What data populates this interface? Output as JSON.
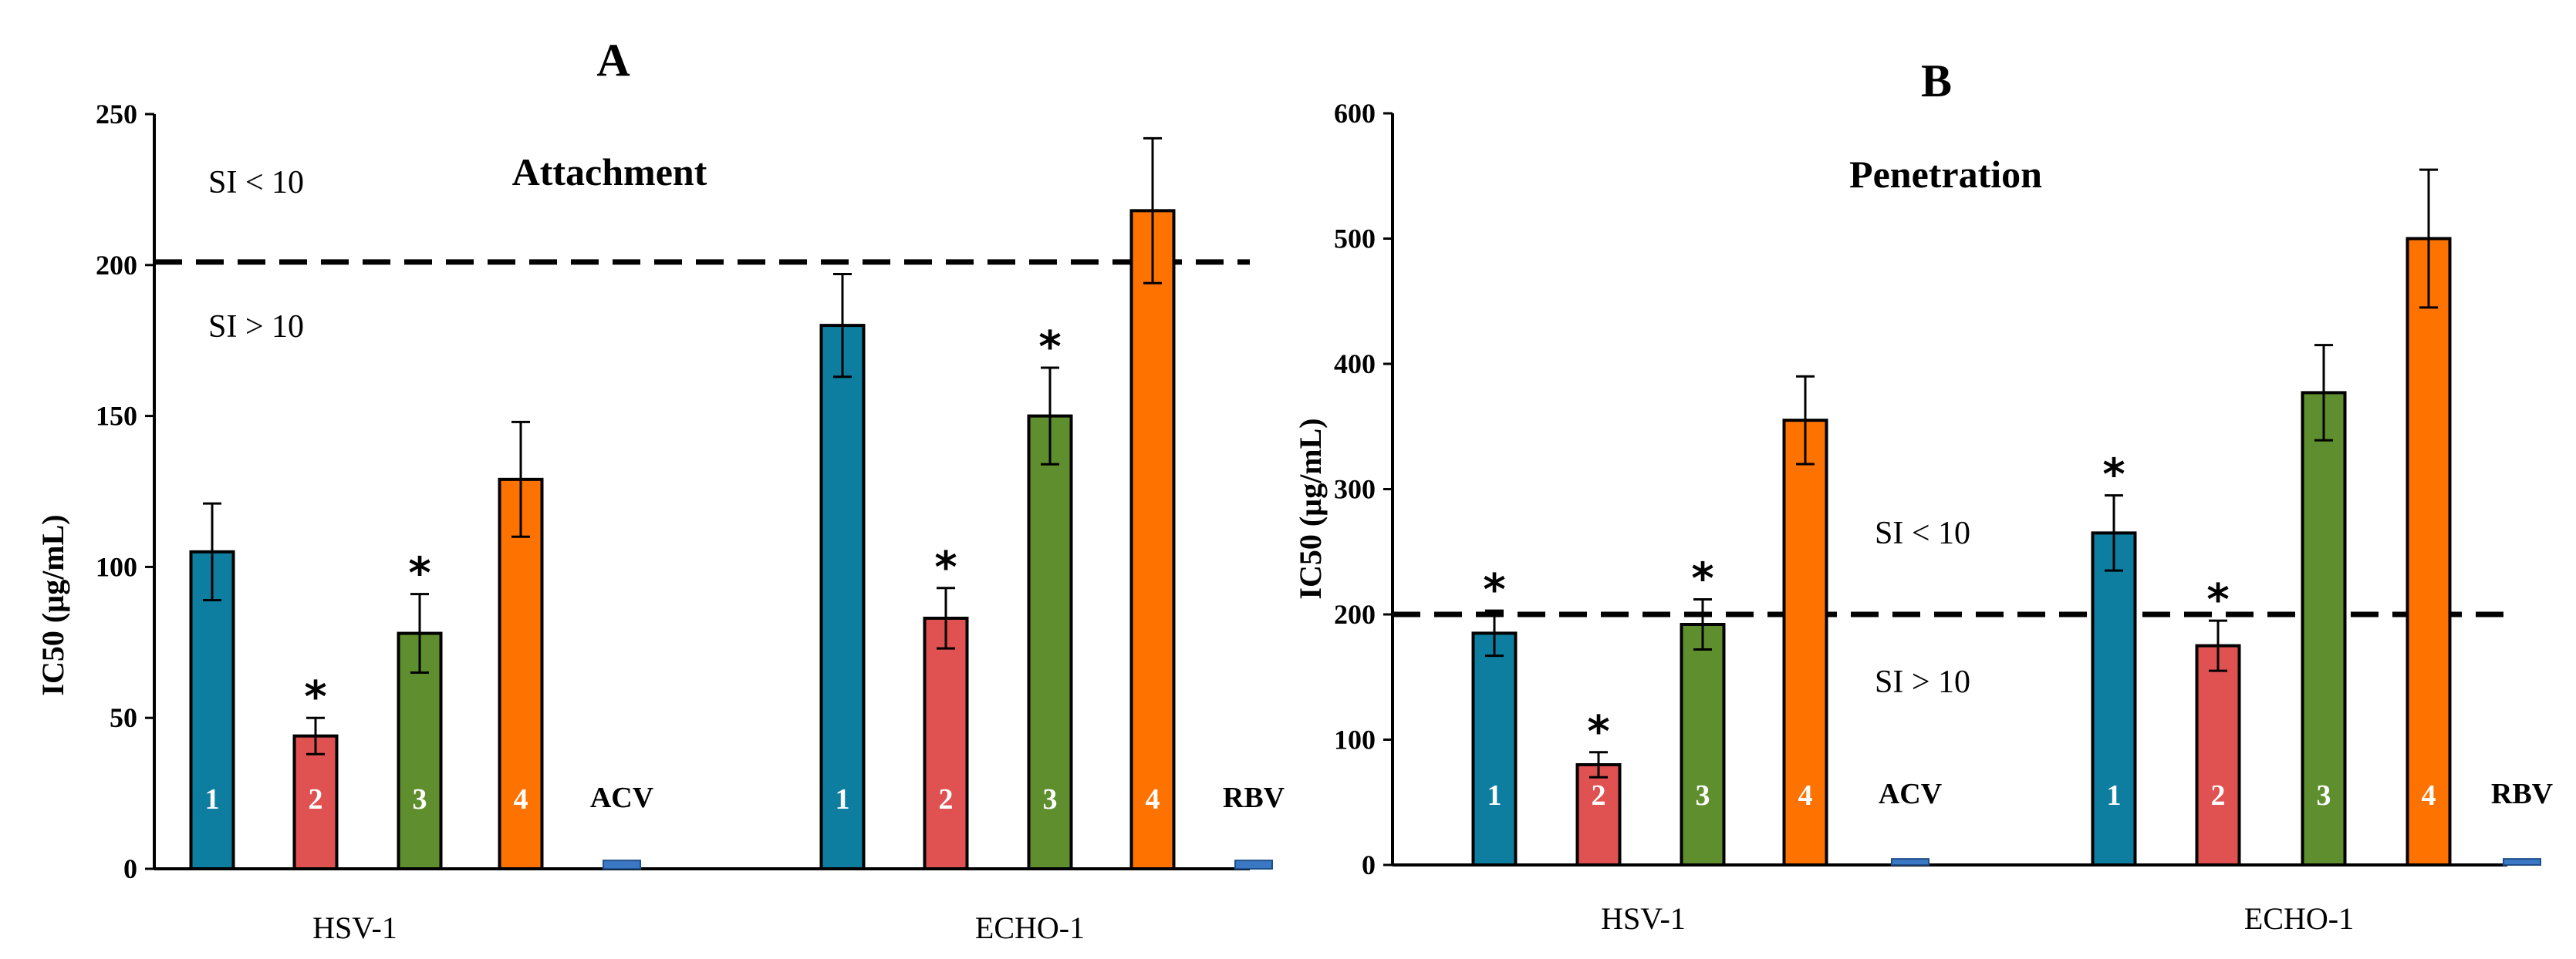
{
  "chart_data": [
    {
      "type": "bar",
      "panel_label": "A",
      "title": "Attachment",
      "xlabel": "",
      "ylabel": "IC50 (µg/mL)",
      "ylim": [
        0,
        250
      ],
      "yticks": [
        0,
        50,
        100,
        150,
        200,
        250
      ],
      "groups": [
        {
          "name": "HSV-1",
          "bars": [
            {
              "label": "1",
              "value": 105,
              "error": 16,
              "significant": false,
              "color": "#0e7ea0"
            },
            {
              "label": "2",
              "value": 44,
              "error": 6,
              "significant": true,
              "color": "#e05151"
            },
            {
              "label": "3",
              "value": 78,
              "error": 13,
              "significant": true,
              "color": "#5e8e2d"
            },
            {
              "label": "4",
              "value": 129,
              "error": 19,
              "significant": false,
              "color": "#fe7200"
            }
          ],
          "control": {
            "label": "ACV",
            "value": 2,
            "color": "#3a78c4"
          }
        },
        {
          "name": "ECHO-1",
          "bars": [
            {
              "label": "1",
              "value": 180,
              "error": 17,
              "significant": false,
              "color": "#0e7ea0"
            },
            {
              "label": "2",
              "value": 83,
              "error": 10,
              "significant": true,
              "color": "#e05151"
            },
            {
              "label": "3",
              "value": 150,
              "error": 16,
              "significant": true,
              "color": "#5e8e2d"
            },
            {
              "label": "4",
              "value": 218,
              "error": 24,
              "significant": false,
              "color": "#fe7200"
            }
          ],
          "control": {
            "label": "RBV",
            "value": 2,
            "color": "#3a78c4"
          }
        }
      ],
      "threshold": {
        "value": 201,
        "above_label": "SI < 10",
        "below_label": "SI > 10"
      },
      "significance_marker": "*"
    },
    {
      "type": "bar",
      "panel_label": "B",
      "title": "Penetration",
      "xlabel": "",
      "ylabel": "IC50 (µg/mL)",
      "ylim": [
        0,
        600
      ],
      "yticks": [
        0,
        100,
        200,
        300,
        400,
        500,
        600
      ],
      "groups": [
        {
          "name": "HSV-1",
          "bars": [
            {
              "label": "1",
              "value": 185,
              "error": 18,
              "significant": true,
              "color": "#0e7ea0"
            },
            {
              "label": "2",
              "value": 80,
              "error": 10,
              "significant": true,
              "color": "#e05151"
            },
            {
              "label": "3",
              "value": 192,
              "error": 20,
              "significant": true,
              "color": "#5e8e2d"
            },
            {
              "label": "4",
              "value": 355,
              "error": 35,
              "significant": false,
              "color": "#fe7200"
            }
          ],
          "control": {
            "label": "ACV",
            "value": 3,
            "color": "#3a78c4"
          }
        },
        {
          "name": "ECHO-1",
          "bars": [
            {
              "label": "1",
              "value": 265,
              "error": 30,
              "significant": true,
              "color": "#0e7ea0"
            },
            {
              "label": "2",
              "value": 175,
              "error": 20,
              "significant": true,
              "color": "#e05151"
            },
            {
              "label": "3",
              "value": 377,
              "error": 38,
              "significant": false,
              "color": "#5e8e2d"
            },
            {
              "label": "4",
              "value": 500,
              "error": 55,
              "significant": false,
              "color": "#fe7200"
            }
          ],
          "control": {
            "label": "RBV",
            "value": 3,
            "color": "#3a78c4"
          }
        }
      ],
      "threshold": {
        "value": 200,
        "above_label": "SI < 10",
        "below_label": "SI > 10"
      },
      "significance_marker": "*"
    }
  ]
}
